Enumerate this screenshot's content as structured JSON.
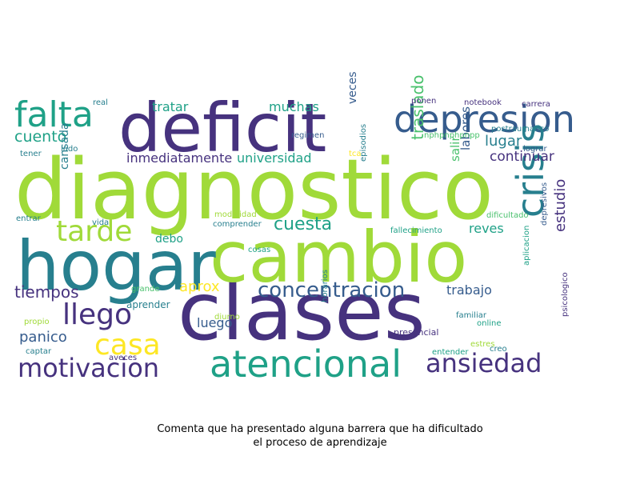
{
  "caption": {
    "line1": "Comenta que ha presentado alguna barrera que ha dificultado",
    "line2": "el proceso de aprendizaje"
  },
  "palette": {
    "dark_purple": "#46327e",
    "blue": "#365c8d",
    "teal": "#277f8e",
    "green_teal": "#1fa187",
    "green": "#4ac16d",
    "lime": "#a0da39",
    "yellow": "#fde725"
  },
  "words": [
    "diagnostico",
    "clases",
    "cambio",
    "hogar",
    "deficit",
    "atencional",
    "falta",
    "depresion",
    "crisis",
    "motivacion",
    "ansiedad",
    "tarde",
    "llego",
    "casa",
    "concentracion",
    "cuesta",
    "cuento",
    "tiempos",
    "estudio",
    "panico",
    "traslado",
    "continuar",
    "lugar",
    "inmediatamente",
    "universidad",
    "tratar",
    "muchas",
    "aprox",
    "trabajo",
    "reves",
    "luego",
    "debo",
    "labores",
    "veces",
    "salir",
    "cansada",
    "regimen",
    "notebook",
    "carrera",
    "ponen",
    "postraumatico",
    "lograr",
    "nphpnphpnpp",
    "tca",
    "episodios",
    "dificultado",
    "fallecimiento",
    "modalidad",
    "comprender",
    "cosas",
    "diurno",
    "vida",
    "entrar",
    "tener",
    "lado",
    "real",
    "grande",
    "aprender",
    "propio",
    "captar",
    "aveces",
    "horarios",
    "presencial",
    "familiar",
    "online",
    "entender",
    "estres",
    "creo",
    "aplicacion",
    "depresivos",
    "psicologico"
  ]
}
